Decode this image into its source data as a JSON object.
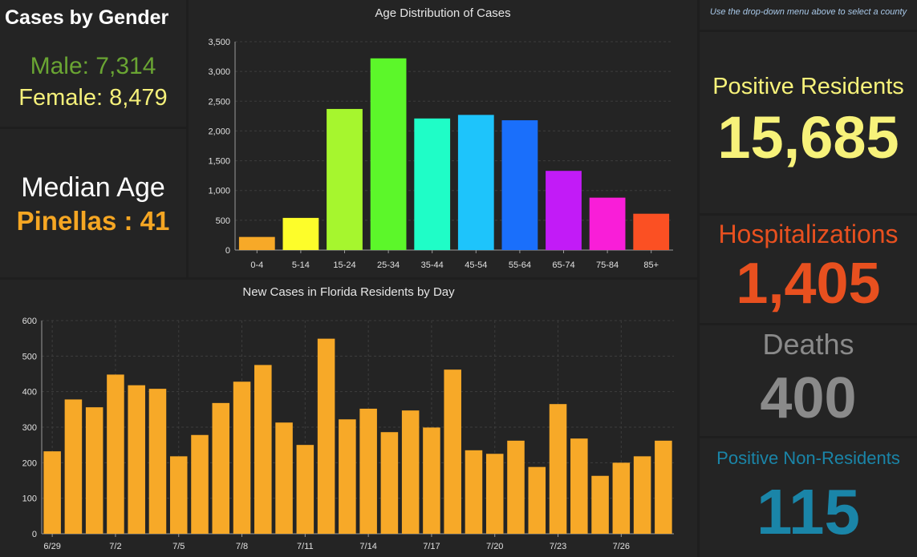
{
  "gender": {
    "title": "Cases by Gender",
    "male": "Male: 7,314",
    "female": "Female: 8,479"
  },
  "median": {
    "title": "Median Age",
    "value": "Pinellas : 41"
  },
  "hint": "Use the drop-down menu above to select a county",
  "stats": {
    "positive_label": "Positive Residents",
    "positive_value": "15,685",
    "hosp_label": "Hospitalizations",
    "hosp_value": "1,405",
    "deaths_label": "Deaths",
    "deaths_value": "400",
    "nonres_label": "Positive Non-Residents",
    "nonres_value": "115"
  },
  "colors": {
    "male": "#6aa533",
    "female": "#f5f07a",
    "median_value": "#f5a623",
    "positive": "#f7f27a",
    "hosp": "#e8501f",
    "deaths": "#8a8a8a",
    "nonres": "#1a85a8",
    "daily_bar": "#f7a928"
  },
  "chart_data": [
    {
      "type": "bar",
      "title": "Age Distribution of Cases",
      "categories": [
        "0-4",
        "5-14",
        "15-24",
        "25-34",
        "35-44",
        "45-54",
        "55-64",
        "65-74",
        "75-84",
        "85+"
      ],
      "values": [
        220,
        540,
        2370,
        3220,
        2210,
        2270,
        2180,
        1330,
        880,
        610
      ],
      "colors": [
        "#f7a928",
        "#fdfd2a",
        "#a6f62e",
        "#5cf72a",
        "#1ffdc7",
        "#1ec4fb",
        "#1a6ffb",
        "#c21bf7",
        "#f91ed8",
        "#fb5023"
      ],
      "yticks": [
        "0",
        "500",
        "1,000",
        "1,500",
        "2,000",
        "2,500",
        "3,000",
        "3,500"
      ],
      "ylim": [
        0,
        3500
      ],
      "grid": true
    },
    {
      "type": "bar",
      "title": "New Cases in Florida Residents by Day",
      "categories": [
        "6/29",
        "6/30",
        "7/1",
        "7/2",
        "7/3",
        "7/4",
        "7/5",
        "7/6",
        "7/7",
        "7/8",
        "7/9",
        "7/10",
        "7/11",
        "7/12",
        "7/13",
        "7/14",
        "7/15",
        "7/16",
        "7/17",
        "7/18",
        "7/19",
        "7/20",
        "7/21",
        "7/22",
        "7/23",
        "7/24",
        "7/25",
        "7/26",
        "7/27",
        "7/28"
      ],
      "values": [
        232,
        378,
        356,
        448,
        418,
        408,
        218,
        278,
        368,
        428,
        475,
        313,
        250,
        549,
        322,
        352,
        286,
        347,
        299,
        462,
        235,
        225,
        262,
        188,
        365,
        268,
        163,
        200,
        218,
        262
      ],
      "xtick_labels": [
        "6/29",
        "7/2",
        "7/5",
        "7/8",
        "7/11",
        "7/14",
        "7/17",
        "7/20",
        "7/23",
        "7/26"
      ],
      "yticks": [
        "0",
        "100",
        "200",
        "300",
        "400",
        "500",
        "600"
      ],
      "ylim": [
        0,
        600
      ],
      "grid": true
    }
  ]
}
